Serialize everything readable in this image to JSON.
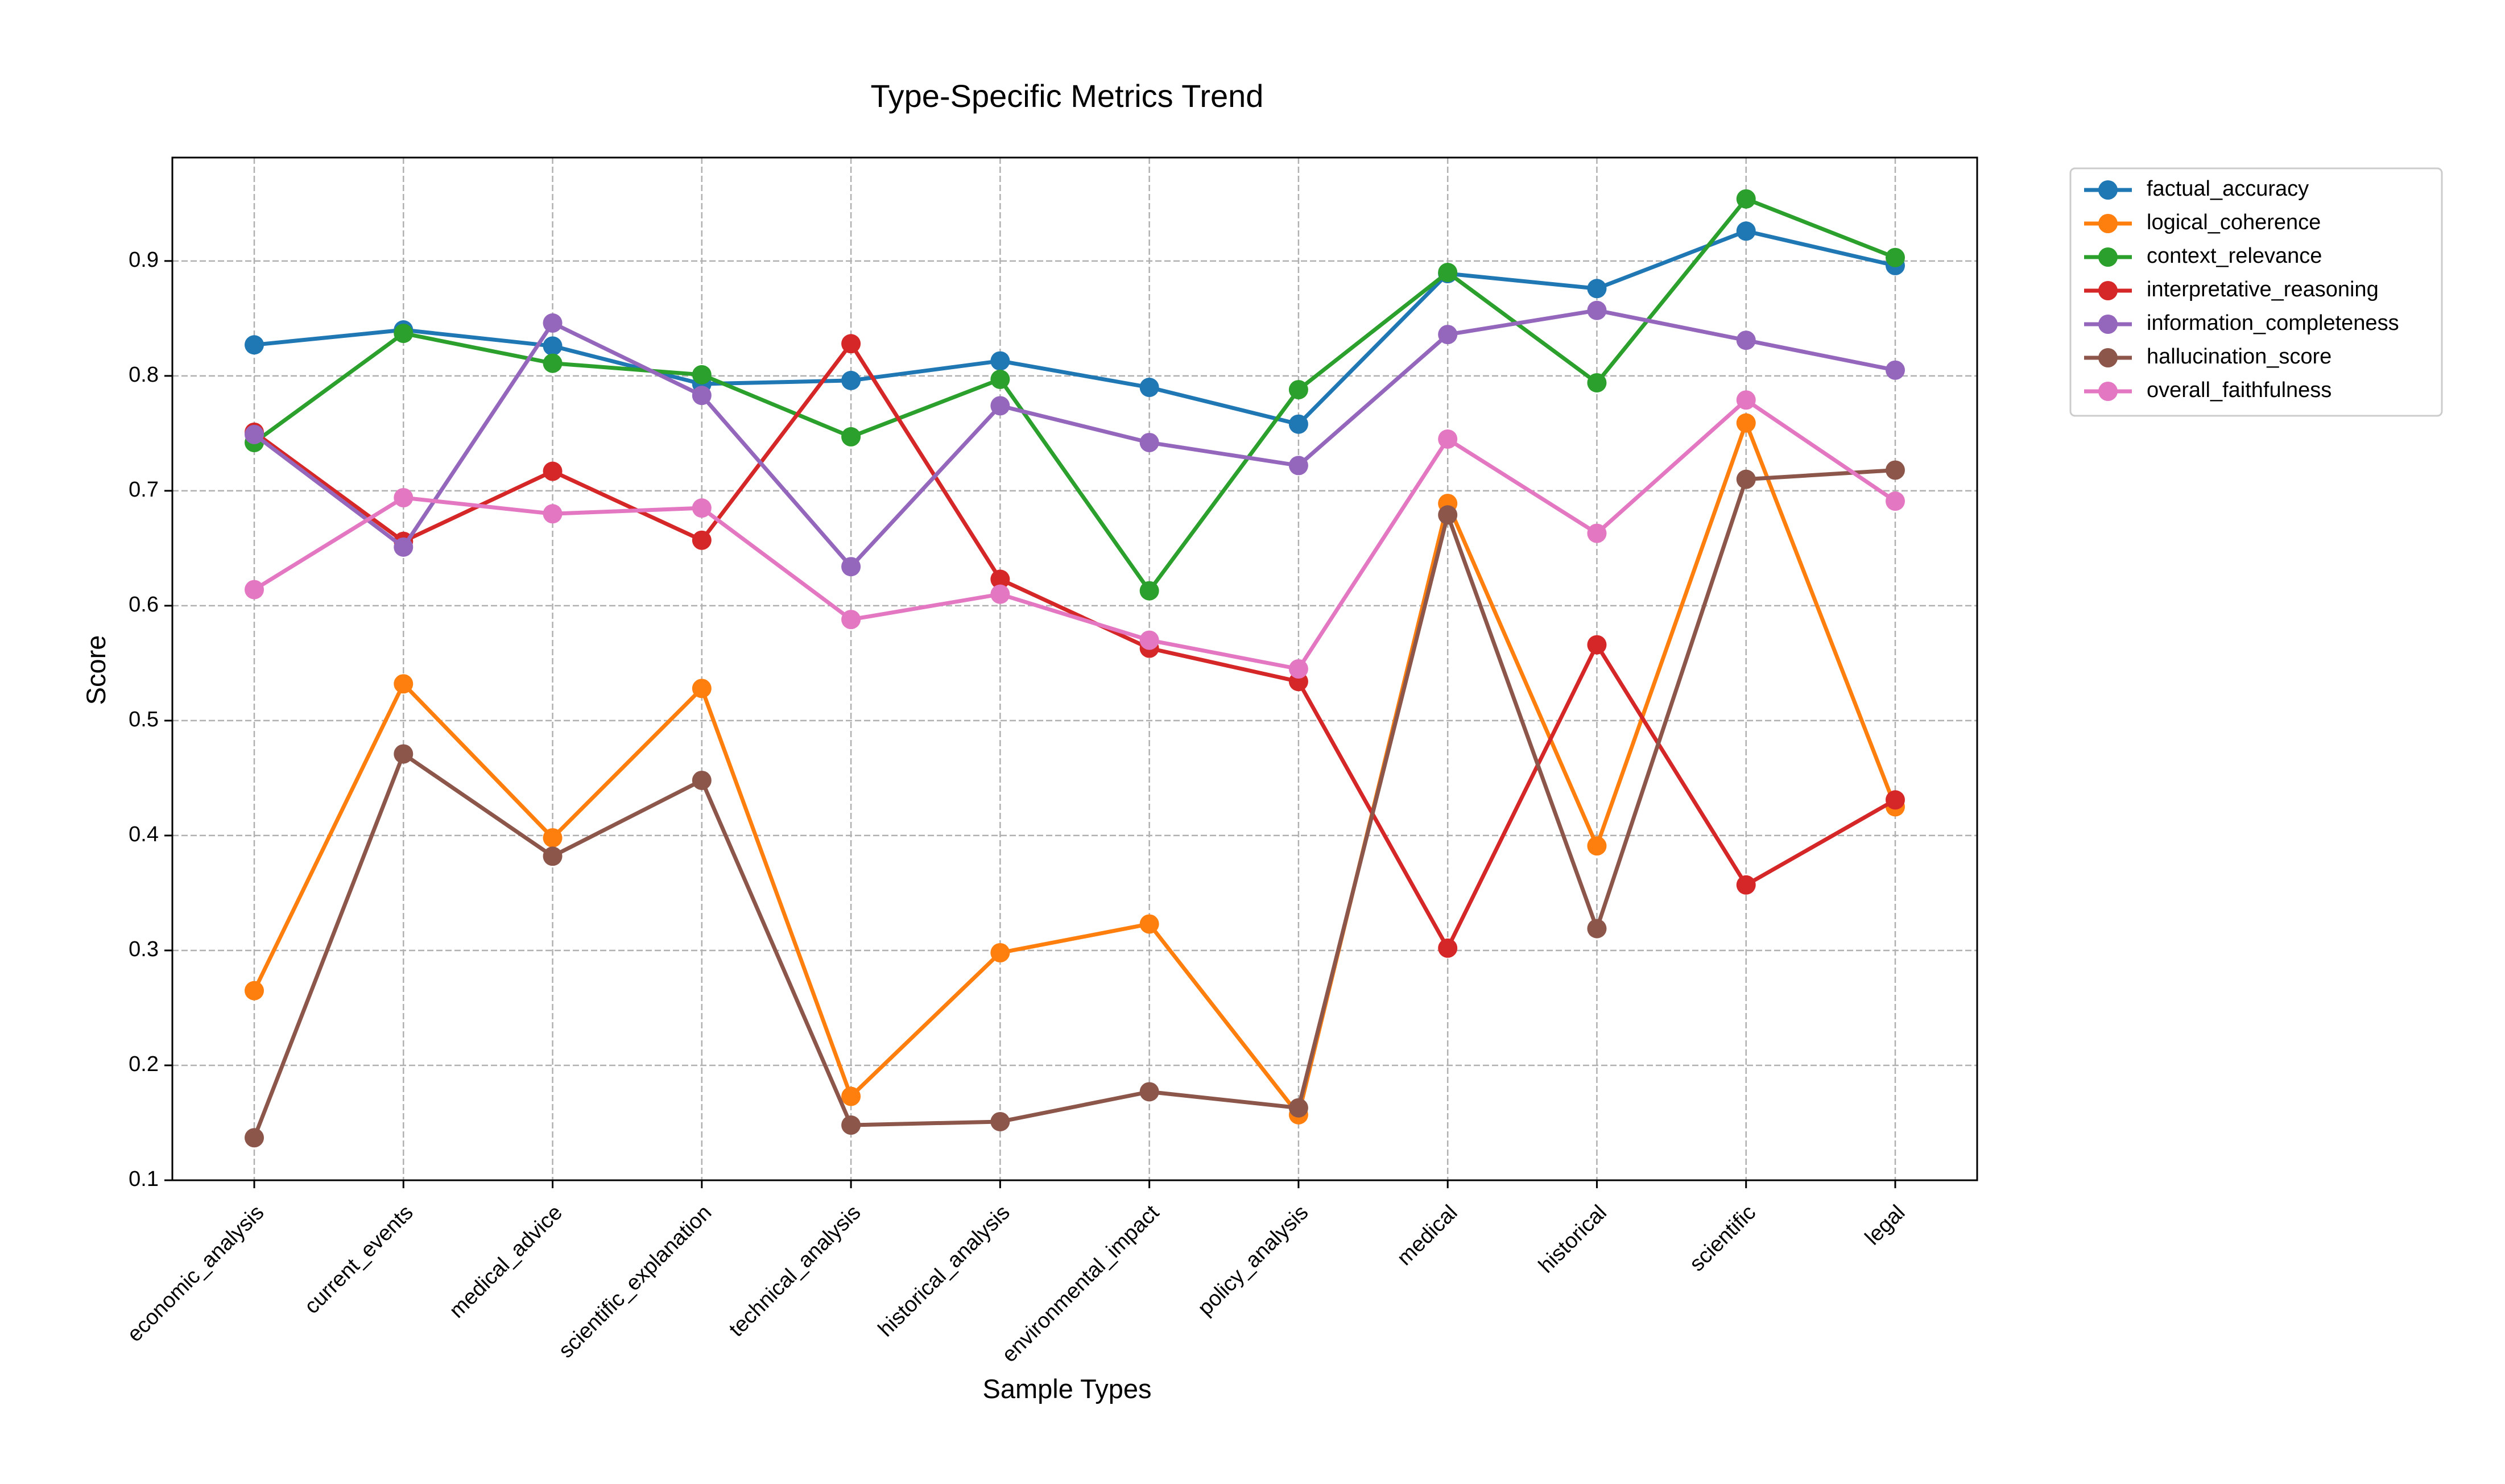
{
  "chart_data": {
    "type": "line",
    "title": "Type-Specific Metrics Trend",
    "xlabel": "Sample Types",
    "ylabel": "Score",
    "ylim": [
      0.1,
      0.99
    ],
    "yticks": [
      0.1,
      0.2,
      0.3,
      0.4,
      0.5,
      0.6,
      0.7,
      0.8,
      0.9
    ],
    "ytick_labels": [
      "0.1",
      "0.2",
      "0.3",
      "0.4",
      "0.5",
      "0.6",
      "0.7",
      "0.8",
      "0.9"
    ],
    "grid": true,
    "legend_position": "outside-top-right",
    "categories": [
      "economic_analysis",
      "current_events",
      "medical_advice",
      "scientific_explanation",
      "technical_analysis",
      "historical_analysis",
      "environmental_impact",
      "policy_analysis",
      "medical",
      "historical",
      "scientific",
      "legal"
    ],
    "series": [
      {
        "name": "factual_accuracy",
        "color": "#1f77b4",
        "values": [
          0.827,
          0.84,
          0.826,
          0.793,
          0.796,
          0.813,
          0.79,
          0.758,
          0.889,
          0.876,
          0.926,
          0.896
        ]
      },
      {
        "name": "logical_coherence",
        "color": "#ff7f0e",
        "values": [
          0.265,
          0.532,
          0.398,
          0.528,
          0.173,
          0.298,
          0.323,
          0.157,
          0.689,
          0.391,
          0.759,
          0.425
        ]
      },
      {
        "name": "context_relevance",
        "color": "#2ca02c",
        "values": [
          0.742,
          0.837,
          0.811,
          0.801,
          0.747,
          0.797,
          0.613,
          0.788,
          0.89,
          0.794,
          0.954,
          0.903
        ]
      },
      {
        "name": "interpretative_reasoning",
        "color": "#d62728",
        "values": [
          0.751,
          0.656,
          0.717,
          0.657,
          0.828,
          0.623,
          0.563,
          0.534,
          0.302,
          0.566,
          0.357,
          0.431
        ]
      },
      {
        "name": "information_completeness",
        "color": "#9467bd",
        "values": [
          0.749,
          0.651,
          0.846,
          0.783,
          0.634,
          0.774,
          0.742,
          0.722,
          0.836,
          0.857,
          0.831,
          0.805
        ]
      },
      {
        "name": "hallucination_score",
        "color": "#8c564b",
        "values": [
          0.137,
          0.471,
          0.382,
          0.448,
          0.148,
          0.151,
          0.177,
          0.163,
          0.679,
          0.319,
          0.71,
          0.718
        ]
      },
      {
        "name": "overall_faithfulness",
        "color": "#e377c2",
        "values": [
          0.614,
          0.694,
          0.68,
          0.685,
          0.588,
          0.61,
          0.57,
          0.545,
          0.745,
          0.663,
          0.779,
          0.691
        ]
      }
    ]
  }
}
